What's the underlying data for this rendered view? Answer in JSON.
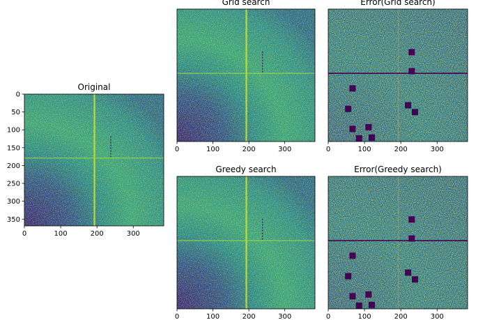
{
  "chart_data": [
    {
      "type": "heatmap",
      "title": "Original",
      "xticks": [
        0,
        100,
        200,
        300
      ],
      "yticks": [
        0,
        50,
        100,
        150,
        200,
        250,
        300,
        350
      ],
      "xlim": [
        0,
        384
      ],
      "ylim": [
        0,
        369
      ],
      "colormap": "viridis",
      "features": {
        "vertical_line_x": 193,
        "horizontal_line_y": 179
      }
    },
    {
      "type": "heatmap",
      "title": "Grid search",
      "xticks": [
        0,
        100,
        200,
        300
      ],
      "xlim": [
        0,
        384
      ],
      "ylim": [
        0,
        369
      ],
      "colormap": "viridis"
    },
    {
      "type": "heatmap",
      "title": "Error(Grid search)",
      "xticks": [
        0,
        100,
        200,
        300
      ],
      "xlim": [
        0,
        384
      ],
      "ylim": [
        0,
        369
      ],
      "colormap": "viridis",
      "masked_blocks": [
        {
          "x": 230,
          "y": 120
        },
        {
          "x": 230,
          "y": 173
        },
        {
          "x": 67,
          "y": 221
        },
        {
          "x": 55,
          "y": 278
        },
        {
          "x": 220,
          "y": 268
        },
        {
          "x": 239,
          "y": 287
        },
        {
          "x": 67,
          "y": 334
        },
        {
          "x": 111,
          "y": 329
        },
        {
          "x": 120,
          "y": 358
        },
        {
          "x": 85,
          "y": 360
        }
      ]
    },
    {
      "type": "heatmap",
      "title": "Greedy search",
      "xticks": [
        0,
        100,
        200,
        300
      ],
      "xlim": [
        0,
        384
      ],
      "ylim": [
        0,
        369
      ],
      "colormap": "viridis"
    },
    {
      "type": "heatmap",
      "title": "Error(Greedy search)",
      "xticks": [
        0,
        100,
        200,
        300
      ],
      "xlim": [
        0,
        384
      ],
      "ylim": [
        0,
        369
      ],
      "colormap": "viridis",
      "masked_blocks": [
        {
          "x": 230,
          "y": 120
        },
        {
          "x": 230,
          "y": 173
        },
        {
          "x": 67,
          "y": 221
        },
        {
          "x": 55,
          "y": 278
        },
        {
          "x": 220,
          "y": 268
        },
        {
          "x": 239,
          "y": 287
        },
        {
          "x": 67,
          "y": 334
        },
        {
          "x": 111,
          "y": 329
        },
        {
          "x": 120,
          "y": 358
        },
        {
          "x": 85,
          "y": 360
        }
      ]
    }
  ],
  "colors": {
    "viridis_dark": "#440154",
    "viridis_blue": "#31688e",
    "viridis_teal": "#21918c",
    "viridis_green": "#35b779",
    "viridis_yellow": "#fde725",
    "mask": "#440154"
  }
}
